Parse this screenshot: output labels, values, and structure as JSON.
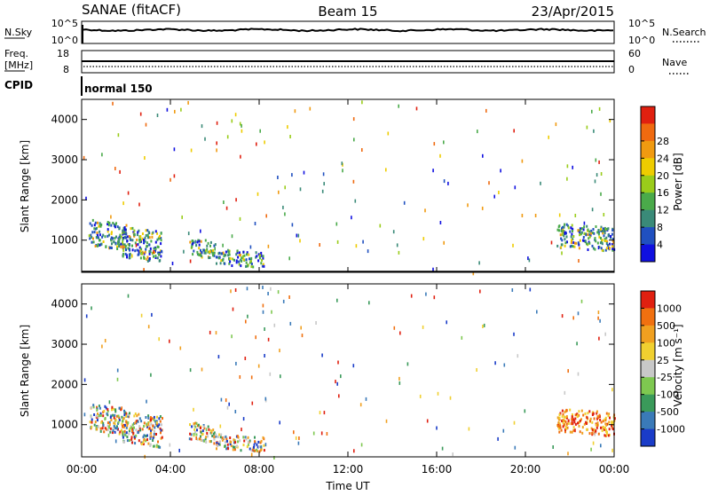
{
  "header": {
    "station": "SANAE (fitACF)",
    "beam": "Beam 15",
    "date": "23/Apr/2015"
  },
  "status_panels": {
    "nsky_label": "N.Sky",
    "nsky_ticks": [
      "10^5",
      "10^0"
    ],
    "nsearch_label": "N.Search",
    "nsearch_ticks": [
      "10^5",
      "10^0"
    ],
    "freq_label": "Freq.",
    "freq_unit": "[MHz]",
    "freq_ticks": [
      "18",
      "8"
    ],
    "nave_label": "Nave",
    "nave_ticks": [
      "60",
      "0"
    ],
    "cpid_label": "CPID",
    "cpid_value": "normal 150"
  },
  "chart_data": [
    {
      "type": "heatmap",
      "parameter": "Power",
      "ylabel": "Slant Range [km]",
      "xlabel": "",
      "y_ticks": [
        "1000",
        "2000",
        "3000",
        "4000"
      ],
      "ylim": [
        200,
        4500
      ],
      "xlim_hours": [
        0,
        24
      ],
      "colorbar_label": "Power [dB]",
      "colorbar_ticks": [
        "4",
        "8",
        "12",
        "16",
        "20",
        "24",
        "28"
      ],
      "colorbar_colors": [
        "#1010e0",
        "#2050c0",
        "#3a8a78",
        "#4aaa4a",
        "#9acc1a",
        "#eecc00",
        "#f09a10",
        "#ef6a10",
        "#e02010"
      ],
      "scatter_regions": [
        {
          "t_start": 0.3,
          "t_end": 2.0,
          "r_low": 900,
          "r_high": 1550
        },
        {
          "t_start": 1.8,
          "t_end": 3.6,
          "r_low": 600,
          "r_high": 1400
        },
        {
          "t_start": 4.8,
          "t_end": 6.0,
          "r_low": 650,
          "r_high": 1100
        },
        {
          "t_start": 6.0,
          "t_end": 8.2,
          "r_low": 420,
          "r_high": 800
        },
        {
          "t_start": 21.4,
          "t_end": 24.0,
          "r_low": 850,
          "r_high": 1450
        }
      ]
    },
    {
      "type": "heatmap",
      "parameter": "Velocity",
      "ylabel": "Slant Range [km]",
      "xlabel": "Time UT",
      "x_ticks": [
        "00:00",
        "04:00",
        "08:00",
        "12:00",
        "16:00",
        "20:00",
        "00:00"
      ],
      "y_ticks": [
        "1000",
        "2000",
        "3000",
        "4000"
      ],
      "ylim": [
        200,
        4500
      ],
      "xlim_hours": [
        0,
        24
      ],
      "colorbar_label": "Velocity [m s⁻¹]",
      "colorbar_ticks": [
        "1000",
        "500",
        "100",
        "25",
        "-25",
        "-100",
        "-500",
        "-1000"
      ],
      "colorbar_colors": [
        "#1a3cc8",
        "#3a7ab8",
        "#3a9a5a",
        "#7ec850",
        "#c8c8c8",
        "#f0d030",
        "#f0a020",
        "#f07010",
        "#e02010"
      ],
      "scatter_regions": [
        {
          "t_start": 0.3,
          "t_end": 2.0,
          "r_low": 900,
          "r_high": 1550
        },
        {
          "t_start": 1.8,
          "t_end": 3.6,
          "r_low": 600,
          "r_high": 1400
        },
        {
          "t_start": 4.8,
          "t_end": 6.0,
          "r_low": 650,
          "r_high": 1100
        },
        {
          "t_start": 6.0,
          "t_end": 8.2,
          "r_low": 420,
          "r_high": 800
        },
        {
          "t_start": 21.4,
          "t_end": 24.0,
          "r_low": 850,
          "r_high": 1450
        }
      ]
    }
  ]
}
